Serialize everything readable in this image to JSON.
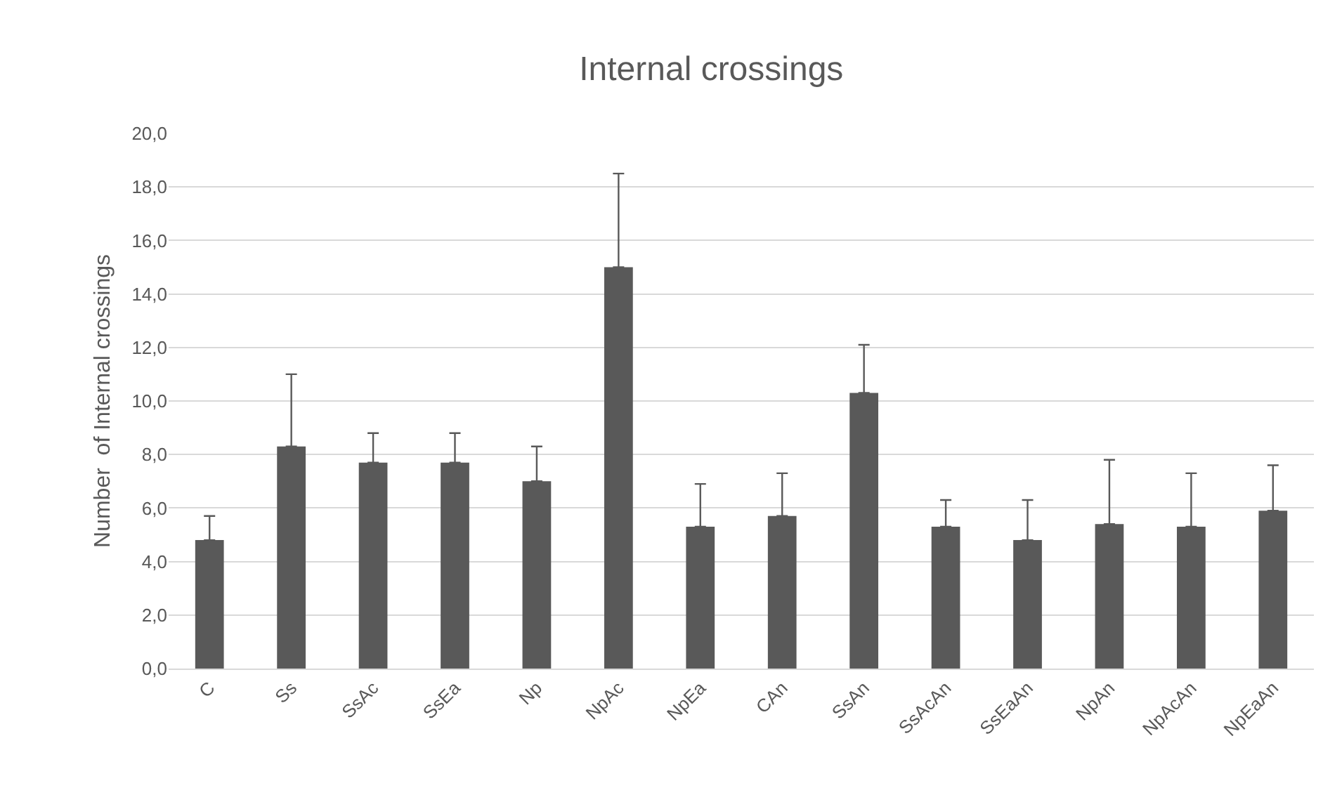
{
  "chart_data": {
    "type": "bar",
    "title": "Internal crossings",
    "ylabel": "Number  of Internal crossings",
    "categories": [
      "C",
      "Ss",
      "SsAc",
      "SsEa",
      "Np",
      "NpAc",
      "NpEa",
      "CAn",
      "SsAn",
      "SsAcAn",
      "SsEaAn",
      "NpAn",
      "NpAcAn",
      "NpEaAn"
    ],
    "values": [
      4.8,
      8.3,
      7.7,
      7.7,
      7.0,
      15.0,
      5.3,
      5.7,
      10.3,
      5.3,
      4.8,
      5.4,
      5.3,
      5.9
    ],
    "errors": [
      [
        4.8,
        5.7
      ],
      [
        8.3,
        11.0
      ],
      [
        7.7,
        8.8
      ],
      [
        7.7,
        8.8
      ],
      [
        7.0,
        8.3
      ],
      [
        15.0,
        18.5
      ],
      [
        5.3,
        6.9
      ],
      [
        5.7,
        7.3
      ],
      [
        10.3,
        12.1
      ],
      [
        5.3,
        6.3
      ],
      [
        4.8,
        6.3
      ],
      [
        5.4,
        7.8
      ],
      [
        5.3,
        7.3
      ],
      [
        5.9,
        7.6
      ]
    ],
    "color": "#595959",
    "ylim": [
      0,
      20
    ],
    "yticks": [
      {
        "value": 0,
        "label": "0,0"
      },
      {
        "value": 2,
        "label": "2,0"
      },
      {
        "value": 4,
        "label": "4,0"
      },
      {
        "value": 6,
        "label": "6,0"
      },
      {
        "value": 8,
        "label": "8,0"
      },
      {
        "value": 10,
        "label": "10,0"
      },
      {
        "value": 12,
        "label": "12,0"
      },
      {
        "value": 14,
        "label": "14,0"
      },
      {
        "value": 16,
        "label": "16,0"
      },
      {
        "value": 18,
        "label": "18,0"
      },
      {
        "value": 20,
        "label": "20,0"
      }
    ],
    "grid": "y",
    "legend": false
  }
}
